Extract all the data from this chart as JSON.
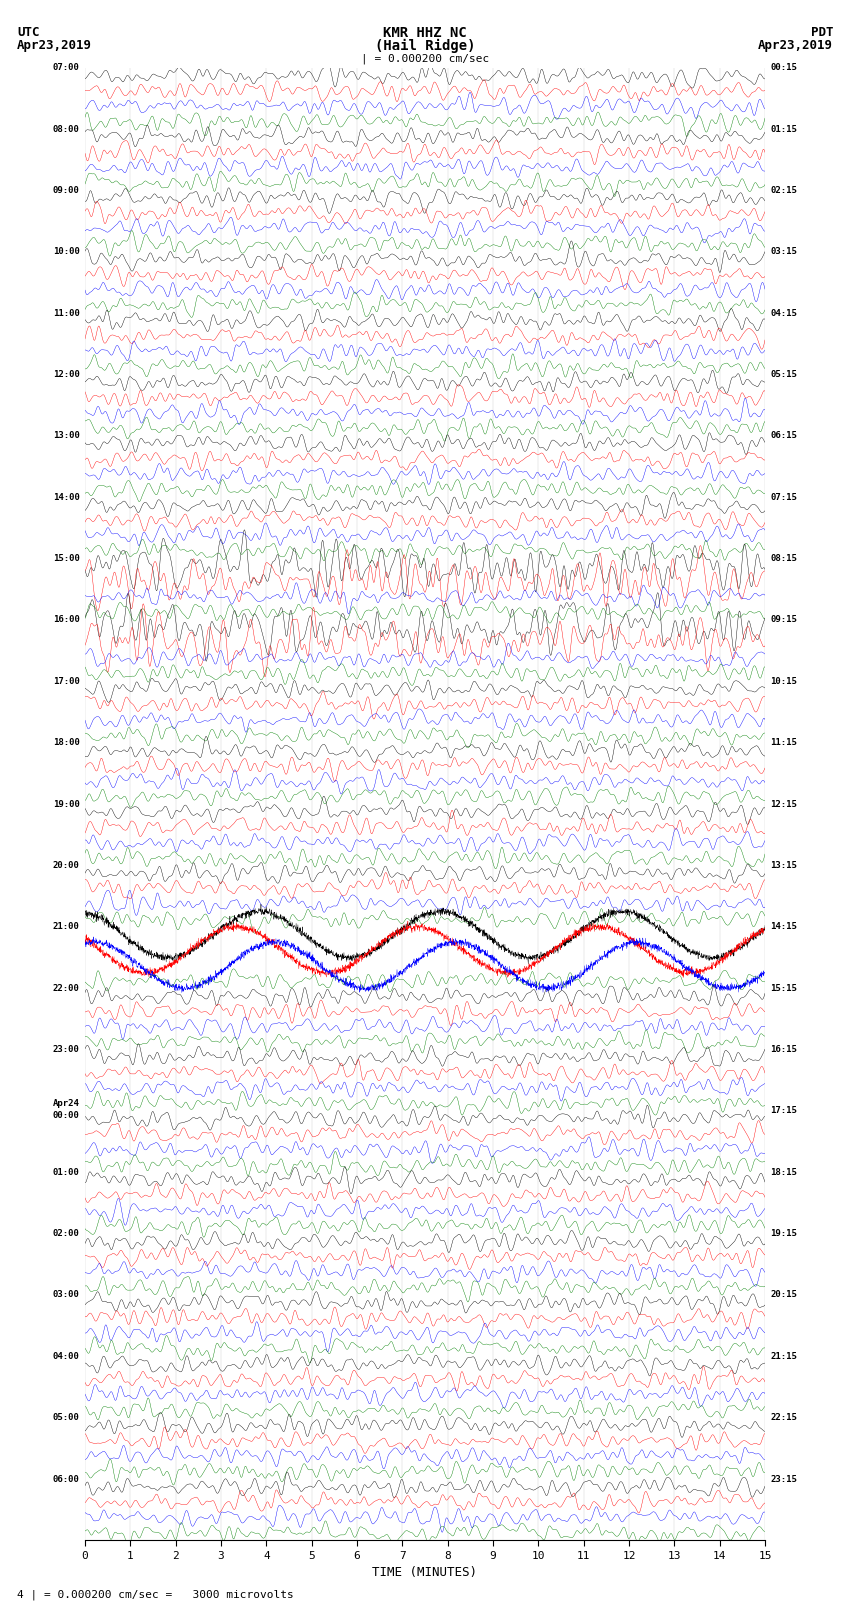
{
  "title_line1": "KMR HHZ NC",
  "title_line2": "(Hail Ridge)",
  "scale_label": "| = 0.000200 cm/sec",
  "left_header_line1": "UTC",
  "left_header_line2": "Apr23,2019",
  "right_header_line1": "PDT",
  "right_header_line2": "Apr23,2019",
  "xlabel": "TIME (MINUTES)",
  "footer": "4 | = 0.000200 cm/sec =   3000 microvolts",
  "xlim": [
    0,
    15
  ],
  "xticks": [
    0,
    1,
    2,
    3,
    4,
    5,
    6,
    7,
    8,
    9,
    10,
    11,
    12,
    13,
    14,
    15
  ],
  "colors": [
    "black",
    "red",
    "blue",
    "green"
  ],
  "fig_width": 8.5,
  "fig_height": 16.13,
  "dpi": 100,
  "left_times": [
    "07:00",
    "",
    "",
    "",
    "08:00",
    "",
    "",
    "",
    "09:00",
    "",
    "",
    "",
    "10:00",
    "",
    "",
    "",
    "11:00",
    "",
    "",
    "",
    "12:00",
    "",
    "",
    "",
    "13:00",
    "",
    "",
    "",
    "14:00",
    "",
    "",
    "",
    "15:00",
    "",
    "",
    "",
    "16:00",
    "",
    "",
    "",
    "17:00",
    "",
    "",
    "",
    "18:00",
    "",
    "",
    "",
    "19:00",
    "",
    "",
    "",
    "20:00",
    "",
    "",
    "",
    "21:00",
    "",
    "",
    "",
    "22:00",
    "",
    "",
    "",
    "23:00",
    "",
    "",
    "",
    "Apr24\n00:00",
    "",
    "",
    "",
    "01:00",
    "",
    "",
    "",
    "02:00",
    "",
    "",
    "",
    "03:00",
    "",
    "",
    "",
    "04:00",
    "",
    "",
    "",
    "05:00",
    "",
    "",
    "",
    "06:00",
    "",
    "",
    ""
  ],
  "right_times": [
    "00:15",
    "",
    "",
    "",
    "01:15",
    "",
    "",
    "",
    "02:15",
    "",
    "",
    "",
    "03:15",
    "",
    "",
    "",
    "04:15",
    "",
    "",
    "",
    "05:15",
    "",
    "",
    "",
    "06:15",
    "",
    "",
    "",
    "07:15",
    "",
    "",
    "",
    "08:15",
    "",
    "",
    "",
    "09:15",
    "",
    "",
    "",
    "10:15",
    "",
    "",
    "",
    "11:15",
    "",
    "",
    "",
    "12:15",
    "",
    "",
    "",
    "13:15",
    "",
    "",
    "",
    "14:15",
    "",
    "",
    "",
    "15:15",
    "",
    "",
    "",
    "16:15",
    "",
    "",
    "",
    "17:15",
    "",
    "",
    "",
    "18:15",
    "",
    "",
    "",
    "19:15",
    "",
    "",
    "",
    "20:15",
    "",
    "",
    "",
    "21:15",
    "",
    "",
    "",
    "22:15",
    "",
    "",
    "",
    "23:15",
    "",
    "",
    ""
  ],
  "noise_seed": 42,
  "n_rows": 96,
  "lf_rows": [
    56,
    57,
    58
  ],
  "big_rows": [
    32,
    33,
    36,
    37
  ]
}
